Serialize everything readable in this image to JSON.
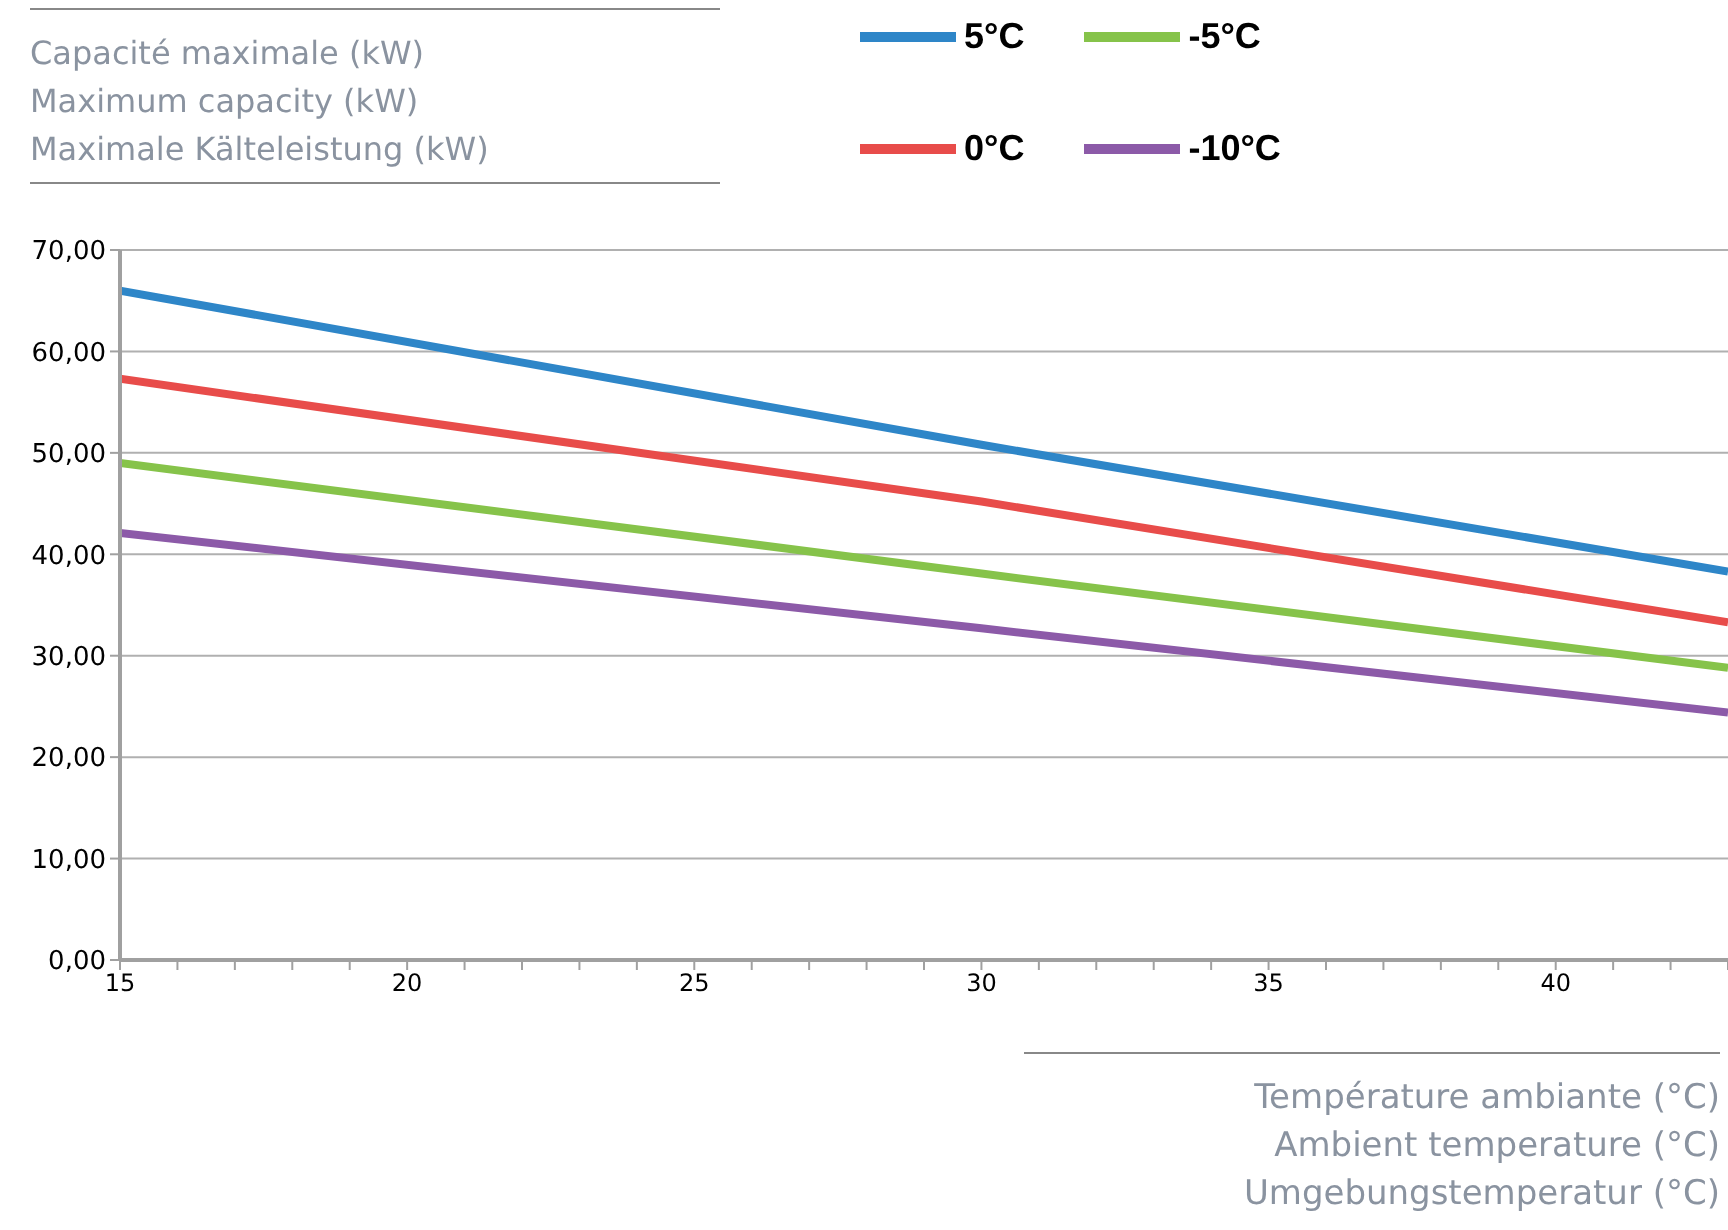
{
  "chart_data": {
    "type": "line",
    "title": "Capacité maximale (kW)\nMaximum capacity (kW)\nMaximale Kälteleistung (kW)",
    "xlabel": "Température ambiante (°C)\nAmbient temperature (°C)\nUmgebungstemperatur (°C)",
    "x": [
      15,
      30,
      43
    ],
    "series": [
      {
        "name": "5°C",
        "color": "#2e86c8",
        "values": [
          66,
          50.8,
          38.3
        ]
      },
      {
        "name": "0°C",
        "color": "#e84c4a",
        "values": [
          57.3,
          45.2,
          33.3
        ]
      },
      {
        "name": "-5°C",
        "color": "#86c34a",
        "values": [
          49,
          38.1,
          28.8
        ]
      },
      {
        "name": "-10°C",
        "color": "#8c5aa8",
        "values": [
          42.1,
          32.7,
          24.4
        ]
      }
    ],
    "xlim": [
      15,
      43
    ],
    "xticks": [
      15,
      {
        "value": 16,
        "label": null
      },
      {
        "value": 17,
        "label": null
      },
      {
        "value": 18,
        "label": null
      },
      {
        "value": 19,
        "label": null
      },
      20,
      {
        "value": 21,
        "label": null
      },
      {
        "value": 22,
        "label": null
      },
      {
        "value": 23,
        "label": null
      },
      {
        "value": 24,
        "label": null
      },
      25,
      {
        "value": 26,
        "label": null
      },
      {
        "value": 27,
        "label": null
      },
      {
        "value": 28,
        "label": null
      },
      {
        "value": 29,
        "label": null
      },
      30,
      {
        "value": 31,
        "label": null
      },
      {
        "value": 32,
        "label": null
      },
      {
        "value": 33,
        "label": null
      },
      {
        "value": 34,
        "label": null
      },
      35,
      {
        "value": 36,
        "label": null
      },
      {
        "value": 37,
        "label": null
      },
      {
        "value": 38,
        "label": null
      },
      {
        "value": 39,
        "label": null
      },
      40,
      {
        "value": 41,
        "label": null
      },
      {
        "value": 42,
        "label": null
      },
      {
        "value": 43,
        "label": null
      }
    ],
    "ylim": [
      0,
      70
    ],
    "yticks": [
      {
        "value": 0,
        "label": "0,00"
      },
      {
        "value": 10,
        "label": "10,00"
      },
      {
        "value": 20,
        "label": "20,00"
      },
      {
        "value": 30,
        "label": "30,00"
      },
      {
        "value": 40,
        "label": "40,00"
      },
      {
        "value": 50,
        "label": "50,00"
      },
      {
        "value": 60,
        "label": "60,00"
      },
      {
        "value": 70,
        "label": "70,00"
      }
    ],
    "grid": "y",
    "legend": "top right",
    "marker": "none",
    "line_style": "solid"
  }
}
